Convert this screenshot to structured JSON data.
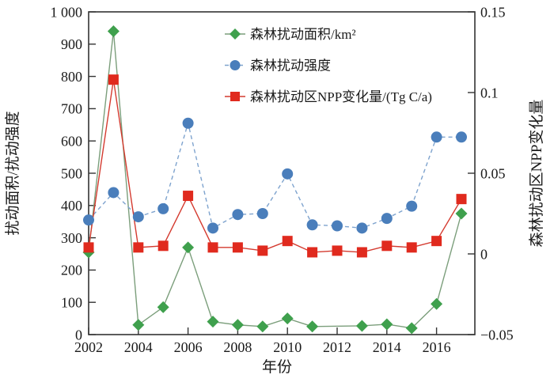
{
  "chart_data": {
    "type": "line",
    "x": [
      2002,
      2003,
      2004,
      2005,
      2006,
      2007,
      2008,
      2009,
      2010,
      2011,
      2012,
      2013,
      2014,
      2015,
      2016,
      2017
    ],
    "xlabel": "年份",
    "ylabel_left": "扰动面积/扰动强度",
    "ylabel_right": "森林扰动区NPP变化量",
    "ylim_left": [
      0,
      1000
    ],
    "ylim_right": [
      -0.05,
      0.15
    ],
    "xticks": [
      2002,
      2004,
      2006,
      2008,
      2010,
      2012,
      2014,
      2016
    ],
    "yticks_left": {
      "values": [
        0,
        100,
        200,
        300,
        400,
        500,
        600,
        700,
        800,
        900,
        1000
      ],
      "labels": [
        "0",
        "100",
        "200",
        "300",
        "400",
        "500",
        "600",
        "700",
        "800",
        "900",
        "1 000"
      ]
    },
    "yticks_right": {
      "values": [
        -0.05,
        0,
        0.05,
        0.1,
        0.15
      ],
      "labels": [
        "−0.05",
        "0",
        "0.05",
        "0.1",
        "0.15"
      ]
    },
    "grid": false,
    "legend_position": "inside-top-center",
    "series": [
      {
        "key": "area",
        "name": "森林扰动面积/km²",
        "axis": "left",
        "marker": "diamond",
        "color": "#3FA04D",
        "line_color": "#7B9E7B",
        "line_style": "solid",
        "values": [
          255,
          940,
          30,
          85,
          270,
          40,
          30,
          25,
          50,
          25,
          null,
          27,
          32,
          20,
          95,
          375
        ]
      },
      {
        "key": "intensity",
        "name": "森林扰动强度",
        "axis": "left",
        "marker": "circle",
        "color": "#4A7EBB",
        "line_color": "#7EA3CE",
        "line_style": "dashed",
        "values": [
          355,
          440,
          365,
          390,
          655,
          330,
          372,
          375,
          498,
          340,
          337,
          330,
          360,
          398,
          612,
          612
        ]
      },
      {
        "key": "npp",
        "name": "森林扰动区NPP变化量/(Tg C/a)",
        "axis": "right",
        "marker": "square",
        "color": "#E02A1E",
        "line_color": "#D43A2F",
        "line_style": "solid",
        "values": [
          0.004,
          0.108,
          0.004,
          0.005,
          0.036,
          0.004,
          0.004,
          0.002,
          0.008,
          0.001,
          0.002,
          0.001,
          0.005,
          0.004,
          0.008,
          0.034
        ]
      }
    ]
  }
}
